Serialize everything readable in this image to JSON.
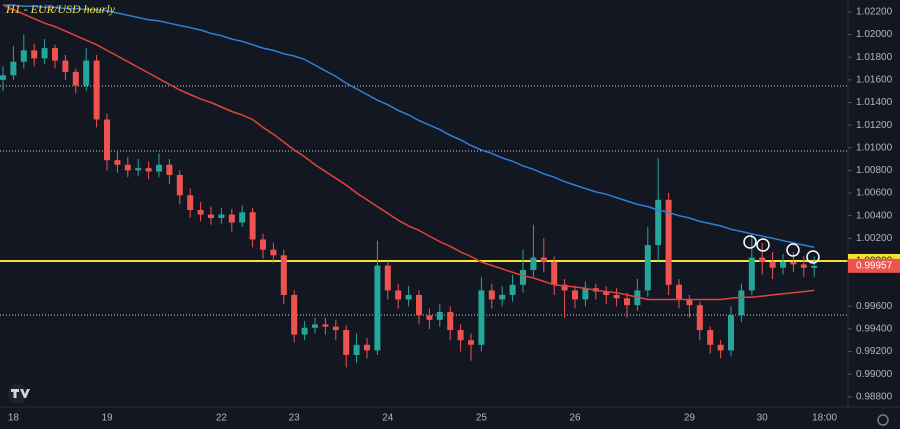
{
  "chart_data": {
    "type": "candlestick",
    "title": "H1 - EUR/USD hourly",
    "categories": [
      null,
      "18",
      null,
      null,
      null,
      null,
      null,
      null,
      null,
      null,
      "19",
      null,
      null,
      null,
      null,
      null,
      null,
      null,
      null,
      null,
      null,
      "22",
      null,
      null,
      null,
      null,
      null,
      null,
      "23",
      null,
      null,
      null,
      null,
      null,
      null,
      null,
      null,
      "24",
      null,
      null,
      null,
      null,
      null,
      null,
      null,
      null,
      "25",
      null,
      null,
      null,
      null,
      null,
      null,
      null,
      null,
      "26",
      null,
      null,
      null,
      null,
      null,
      null,
      null,
      null,
      null,
      null,
      "29",
      null,
      null,
      null,
      null,
      null,
      null,
      "30",
      null,
      null,
      null,
      null,
      null,
      "18:00"
    ],
    "open": [
      1.016,
      1.0164,
      1.0176,
      1.0186,
      1.0179,
      1.0188,
      1.0177,
      1.0167,
      1.0155,
      1.0177,
      1.0125,
      1.0089,
      1.0085,
      1.008,
      1.0082,
      1.0079,
      1.0085,
      1.0076,
      1.0058,
      1.0045,
      1.0041,
      1.0038,
      1.0041,
      1.0034,
      1.0043,
      1.0019,
      1.001,
      1.0005,
      0.997,
      0.9935,
      0.9941,
      0.9944,
      0.9942,
      0.9939,
      0.9917,
      0.9926,
      0.9921,
      0.9996,
      0.9974,
      0.9966,
      0.997,
      0.9952,
      0.9948,
      0.9955,
      0.9939,
      0.993,
      0.9926,
      0.9974,
      0.9966,
      0.997,
      0.9979,
      0.9992,
      1.0003,
      0.9999,
      0.9979,
      0.9974,
      0.9966,
      0.9976,
      0.9973,
      0.997,
      0.9967,
      0.9961,
      0.9974,
      1.0014,
      1.0054,
      0.9979,
      0.9966,
      0.9961,
      0.9939,
      0.9926,
      0.9921,
      0.9952,
      0.9974,
      1.0003,
      0.9999,
      0.9994,
      0.9999,
      0.9997,
      0.9994,
      null
    ],
    "high": [
      1.0172,
      1.019,
      1.02,
      1.0192,
      1.0196,
      1.0191,
      1.0182,
      1.017,
      1.0188,
      1.0182,
      1.013,
      1.0097,
      1.0092,
      1.009,
      1.0088,
      1.0095,
      1.009,
      1.008,
      1.0064,
      1.0052,
      1.0048,
      1.0047,
      1.0046,
      1.0049,
      1.0047,
      1.0024,
      1.0016,
      1.001,
      0.9974,
      0.9947,
      0.995,
      0.995,
      0.9948,
      0.9943,
      0.9936,
      0.9932,
      1.0018,
      1.0,
      0.998,
      0.9978,
      0.9974,
      0.9958,
      0.9962,
      0.996,
      0.9944,
      0.9936,
      0.9986,
      0.998,
      0.9978,
      0.9988,
      1.001,
      1.0032,
      1.002,
      1.0004,
      0.9984,
      0.9978,
      0.9982,
      0.998,
      0.9978,
      0.9976,
      0.9972,
      0.9984,
      1.003,
      1.0091,
      1.006,
      0.9984,
      0.997,
      0.9964,
      0.9942,
      0.993,
      0.996,
      0.998,
      1.0024,
      1.0016,
      1.0008,
      1.0006,
      1.0008,
      1.0004,
      1.0004,
      null
    ],
    "low": [
      1.015,
      1.016,
      1.017,
      1.0172,
      1.0174,
      1.017,
      1.016,
      1.0148,
      1.015,
      1.0118,
      1.008,
      1.0078,
      1.0074,
      1.0075,
      1.0072,
      1.0074,
      1.0068,
      1.005,
      1.0038,
      1.0035,
      1.0032,
      1.0033,
      1.0026,
      1.003,
      1.0012,
      1.0002,
      0.9998,
      0.9962,
      0.9928,
      0.993,
      0.9936,
      0.9935,
      0.993,
      0.9906,
      0.991,
      0.9914,
      0.9917,
      0.9966,
      0.9958,
      0.996,
      0.9944,
      0.994,
      0.9942,
      0.993,
      0.992,
      0.9912,
      0.992,
      0.9958,
      0.996,
      0.9964,
      0.9972,
      0.9986,
      0.999,
      0.997,
      0.995,
      0.9958,
      0.996,
      0.9966,
      0.9962,
      0.996,
      0.995,
      0.9956,
      0.9968,
      1.0,
      0.997,
      0.9958,
      0.995,
      0.993,
      0.9918,
      0.9914,
      0.9916,
      0.9946,
      0.997,
      0.9988,
      0.9984,
      0.9988,
      0.999,
      0.9986,
      0.9986,
      null
    ],
    "close": [
      1.0164,
      1.0176,
      1.0186,
      1.0179,
      1.0188,
      1.0177,
      1.0167,
      1.0155,
      1.0177,
      1.0125,
      1.0089,
      1.0085,
      1.008,
      1.0082,
      1.0079,
      1.0085,
      1.0076,
      1.0058,
      1.0045,
      1.0041,
      1.0038,
      1.0041,
      1.0034,
      1.0043,
      1.0019,
      1.001,
      1.0005,
      0.997,
      0.9935,
      0.9941,
      0.9944,
      0.9942,
      0.9939,
      0.9917,
      0.9926,
      0.9921,
      0.9996,
      0.9974,
      0.9966,
      0.997,
      0.9952,
      0.9948,
      0.9955,
      0.9939,
      0.993,
      0.9926,
      0.9974,
      0.9966,
      0.997,
      0.9979,
      0.9992,
      1.0003,
      0.9999,
      0.9979,
      0.9974,
      0.9966,
      0.9976,
      0.9973,
      0.997,
      0.9967,
      0.9961,
      0.9974,
      1.0014,
      1.0054,
      0.9979,
      0.9966,
      0.9961,
      0.9939,
      0.9926,
      0.9921,
      0.9952,
      0.9974,
      1.0003,
      0.9999,
      0.9994,
      0.9999,
      0.9997,
      0.9994,
      0.99957,
      null
    ],
    "up_color": "#26a69a",
    "down_color": "#ef5350",
    "series": [
      {
        "color": "#2f7fd6",
        "values": [
          1.0226,
          1.0226,
          1.0225,
          1.0225,
          1.0224,
          1.0224,
          1.0223,
          1.0223,
          1.0222,
          1.0222,
          1.0221,
          1.0219,
          1.0217,
          1.0215,
          1.0213,
          1.0212,
          1.021,
          1.0208,
          1.0206,
          1.0204,
          1.0201,
          1.0199,
          1.0196,
          1.0194,
          1.0191,
          1.0188,
          1.0186,
          1.0183,
          1.0181,
          1.0178,
          1.0173,
          1.0168,
          1.0163,
          1.0157,
          1.0152,
          1.0147,
          1.0142,
          1.0138,
          1.0133,
          1.0129,
          1.0124,
          1.012,
          1.0116,
          1.0111,
          1.0107,
          1.0102,
          1.0098,
          1.0095,
          1.0091,
          1.0088,
          1.0084,
          1.0081,
          1.0077,
          1.0074,
          1.007,
          1.0067,
          1.0064,
          1.0061,
          1.0059,
          1.0056,
          1.0053,
          1.005,
          1.0048,
          1.0045,
          1.0043,
          1.004,
          1.0038,
          1.0035,
          1.0033,
          1.0031,
          1.0028,
          1.0026,
          1.0024,
          1.0022,
          1.002,
          1.0018,
          1.0016,
          1.0014,
          1.0012,
          null
        ]
      },
      {
        "color": "#e0443c",
        "values": [
          1.0226,
          1.0222,
          1.0218,
          1.0214,
          1.021,
          1.0207,
          1.0203,
          1.0199,
          1.0195,
          1.0191,
          1.0186,
          1.0181,
          1.0176,
          1.0171,
          1.0166,
          1.0161,
          1.0156,
          1.0151,
          1.0147,
          1.0143,
          1.014,
          1.0136,
          1.0132,
          1.0129,
          1.0125,
          1.0118,
          1.0112,
          1.0105,
          1.0098,
          1.0092,
          1.0085,
          1.0079,
          1.0073,
          1.0067,
          1.006,
          1.0054,
          1.0048,
          1.0042,
          1.0036,
          1.0031,
          1.0027,
          1.0022,
          1.0017,
          1.0013,
          1.0008,
          1.0004,
          0.9999,
          0.9996,
          0.9993,
          0.999,
          0.9987,
          0.9985,
          0.9982,
          0.9979,
          0.9978,
          0.9977,
          0.9976,
          0.9974,
          0.9973,
          0.9972,
          0.997,
          0.9968,
          0.9966,
          0.9966,
          0.9966,
          0.9966,
          0.9966,
          0.9966,
          0.9966,
          0.9966,
          0.9967,
          0.9968,
          0.9968,
          0.9969,
          0.997,
          0.9971,
          0.9972,
          0.9973,
          0.9974,
          null
        ]
      }
    ],
    "hlines": [
      {
        "value": 1.0,
        "label": "1.00000",
        "color": "#f2e335"
      },
      {
        "value": 1.01545,
        "color": "#c8ccd6",
        "style": "dotted"
      },
      {
        "value": 1.00971,
        "color": "#c8ccd6",
        "style": "dotted"
      },
      {
        "value": 0.99523,
        "color": "#c8ccd6",
        "style": "dotted"
      }
    ],
    "price_label": {
      "value": 0.99957,
      "label": "0.99957",
      "color": "#ef5350"
    },
    "ylim": [
      0.98728,
      1.02305
    ],
    "yticks": [
      {
        "value": 1.022,
        "label": "1.02200"
      },
      {
        "value": 1.02,
        "label": "1.02000"
      },
      {
        "value": 1.018,
        "label": "1.01800"
      },
      {
        "value": 1.016,
        "label": "1.01600"
      },
      {
        "value": 1.014,
        "label": "1.01400"
      },
      {
        "value": 1.012,
        "label": "1.01200"
      },
      {
        "value": 1.01,
        "label": "1.01000"
      },
      {
        "value": 1.008,
        "label": "1.00800"
      },
      {
        "value": 1.006,
        "label": "1.00600"
      },
      {
        "value": 1.004,
        "label": "1.00400"
      },
      {
        "value": 1.002,
        "label": "1.00200"
      },
      {
        "value": 0.996,
        "label": "0.99600"
      },
      {
        "value": 0.994,
        "label": "0.99400"
      },
      {
        "value": 0.992,
        "label": "0.99200"
      },
      {
        "value": 0.99,
        "label": "0.99000"
      },
      {
        "value": 0.988,
        "label": "0.98800"
      }
    ],
    "grid": false
  }
}
